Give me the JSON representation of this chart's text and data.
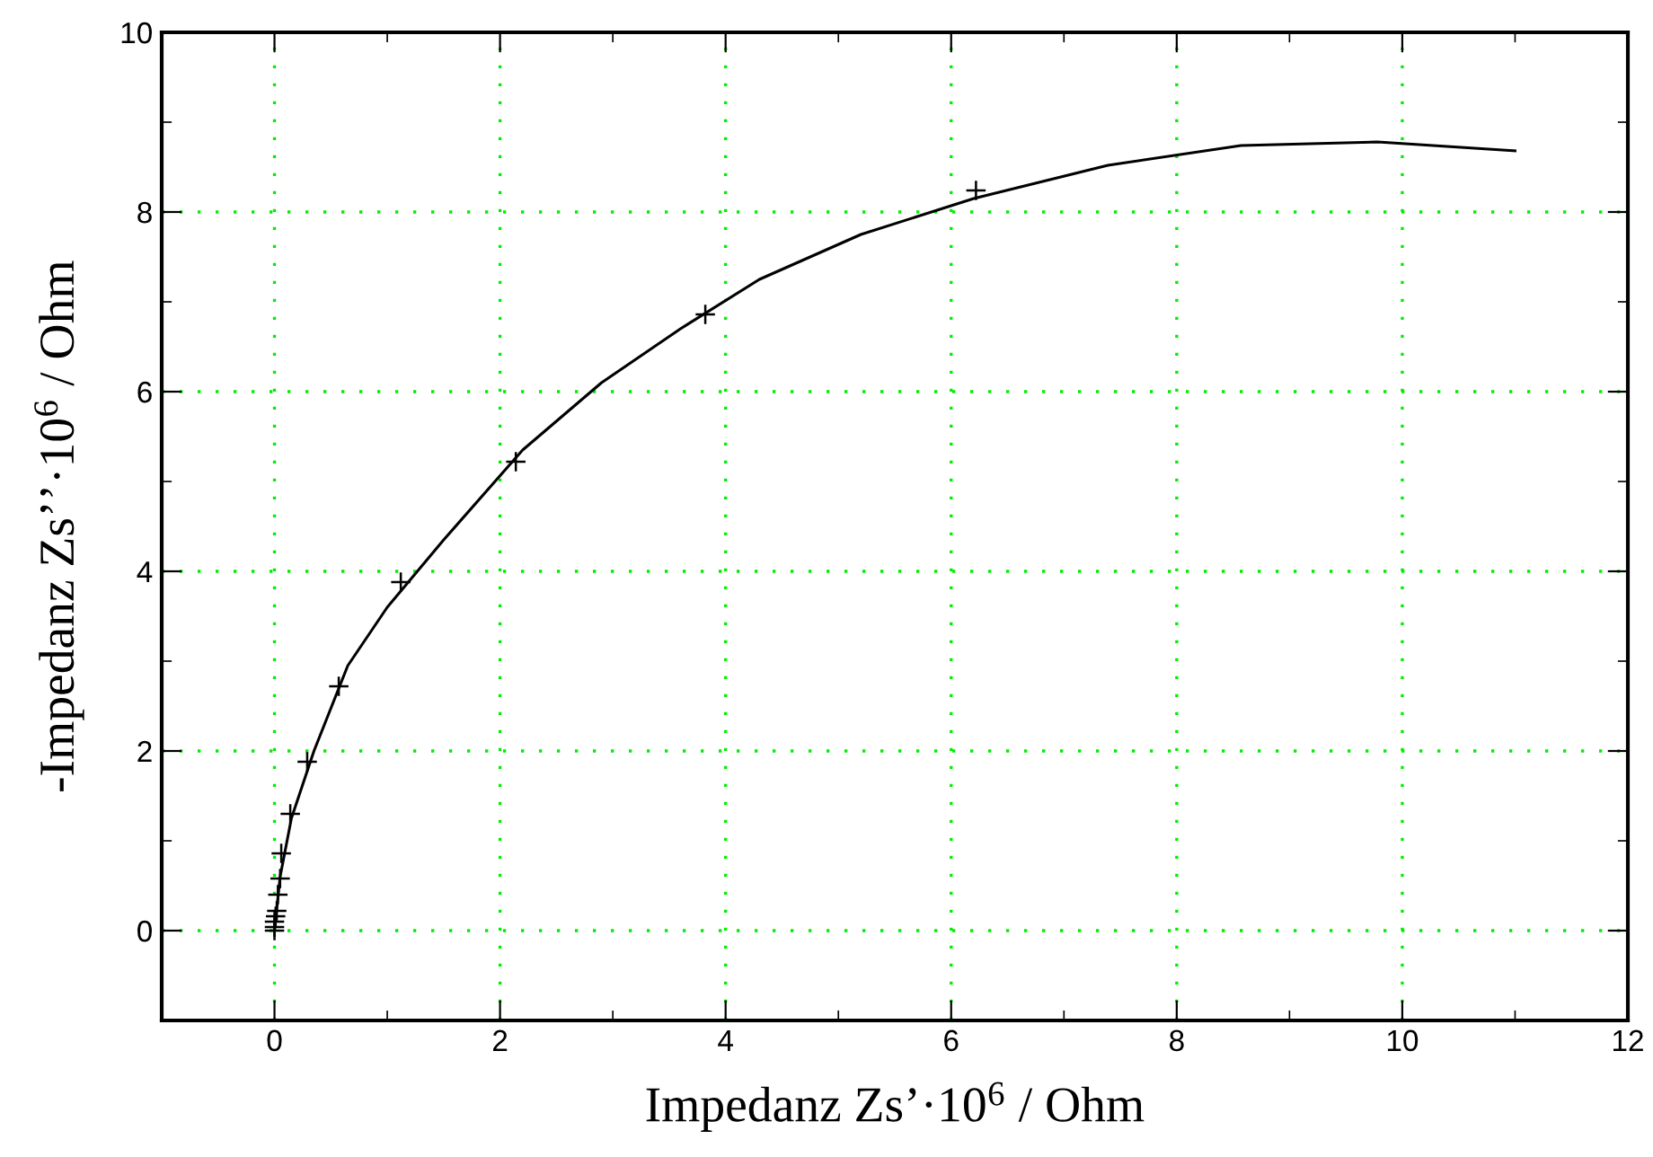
{
  "chart_data": {
    "type": "scatter",
    "xlabel": "Impedanz Zs’·10$^{6}$ / Ohm",
    "ylabel": "-Impedanz Zs’’·10$^{6}$ / Ohm",
    "xlim": [
      -1,
      12
    ],
    "ylim": [
      -1,
      10
    ],
    "xticks": [
      {
        "value": -1,
        "label": null
      },
      0,
      {
        "value": 1,
        "label": null
      },
      2,
      {
        "value": 3,
        "label": null
      },
      4,
      {
        "value": 5,
        "label": null
      },
      6,
      {
        "value": 7,
        "label": null
      },
      8,
      {
        "value": 9,
        "label": null
      },
      10,
      {
        "value": 11,
        "label": null
      },
      12
    ],
    "yticks": [
      {
        "value": -1,
        "label": null
      },
      0,
      {
        "value": 1,
        "label": null
      },
      2,
      {
        "value": 3,
        "label": null
      },
      4,
      {
        "value": 5,
        "label": null
      },
      6,
      {
        "value": 7,
        "label": null
      },
      8,
      {
        "value": 9,
        "label": null
      },
      10
    ],
    "grid": true,
    "series": [
      {
        "marker": "cross",
        "color": "#000000",
        "x": [
          0,
          0,
          0,
          0.01,
          0.02,
          0.03,
          0.05,
          0.06,
          0.14,
          0.29,
          0.57,
          1.12,
          2.14,
          3.82,
          6.22
        ],
        "values": [
          0,
          0.04,
          0.1,
          0.16,
          0.22,
          0.4,
          0.58,
          0.86,
          1.3,
          1.88,
          2.72,
          3.88,
          5.22,
          6.86,
          8.24
        ]
      },
      {
        "type": "line",
        "marker": "none",
        "color": "#000000",
        "x": [
          0,
          0.05,
          0.15,
          0.35,
          0.65,
          1.0,
          1.5,
          2.2,
          2.9,
          3.6,
          4.3,
          5.2,
          6.2,
          7.39,
          8.57,
          9.78,
          11.0
        ],
        "values": [
          0,
          0.6,
          1.25,
          2.0,
          2.95,
          3.6,
          4.35,
          5.35,
          6.1,
          6.7,
          7.25,
          7.75,
          8.15,
          8.52,
          8.74,
          8.78,
          8.68
        ]
      }
    ]
  }
}
